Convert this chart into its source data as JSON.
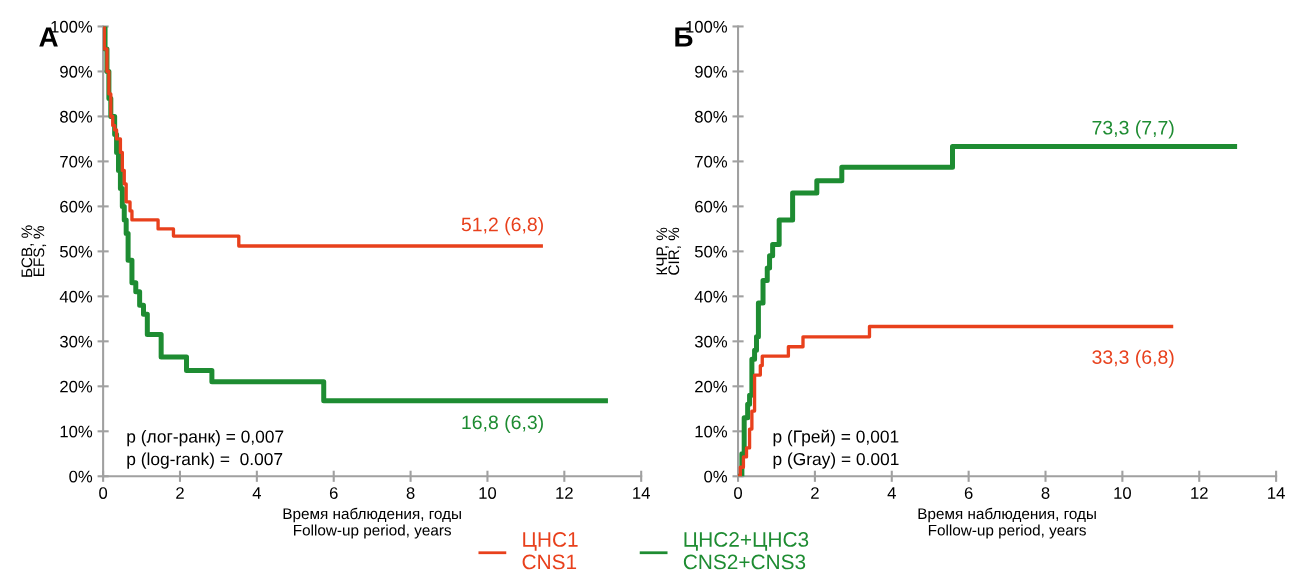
{
  "chart_data": [
    {
      "type": "step",
      "xlabel": "Время наблюдения, годы\nFollow-up period, years",
      "ylabel": "БСВ, %\nEFS, %",
      "xlim": [
        0,
        14
      ],
      "ylim": [
        0,
        100
      ],
      "xticks": [
        0,
        2,
        4,
        6,
        8,
        10,
        12,
        14
      ],
      "yticks": [
        {
          "value": 0,
          "label": "0%"
        },
        {
          "value": 10,
          "label": "10%"
        },
        {
          "value": 20,
          "label": "20%"
        },
        {
          "value": 30,
          "label": "30%"
        },
        {
          "value": 40,
          "label": "40%"
        },
        {
          "value": 50,
          "label": "50%"
        },
        {
          "value": 60,
          "label": "60%"
        },
        {
          "value": 70,
          "label": "70%"
        },
        {
          "value": 80,
          "label": "80%"
        },
        {
          "value": 90,
          "label": "90%"
        },
        {
          "value": 100,
          "label": "100%"
        }
      ],
      "grid": false,
      "legend": "bottom",
      "line_style": "solid",
      "marker": "none",
      "series": [
        {
          "name": "ЦНС1\nCNS1",
          "color": "#e8401c",
          "x": [
            0,
            0.03,
            0.1,
            0.15,
            0.2,
            0.25,
            0.3,
            0.35,
            0.45,
            0.5,
            0.55,
            0.6,
            0.7,
            0.75,
            1.43,
            1.83,
            3.53,
            11.4
          ],
          "values": [
            100,
            95,
            90,
            85,
            80,
            78,
            77,
            75,
            72,
            68,
            65,
            61,
            59,
            57,
            55,
            53.4,
            51.2,
            51.2
          ]
        },
        {
          "name": "ЦНС2+ЦНС3\nCNS2+CNS3",
          "color": "#1e8c32",
          "x": [
            0,
            0.05,
            0.1,
            0.15,
            0.2,
            0.3,
            0.35,
            0.4,
            0.45,
            0.5,
            0.55,
            0.6,
            0.65,
            0.75,
            0.85,
            0.95,
            1.05,
            1.15,
            1.51,
            2.17,
            2.83,
            5.74,
            13.07
          ],
          "values": [
            100,
            95,
            90,
            84,
            80,
            76,
            72,
            68,
            64,
            60,
            57,
            54,
            48,
            43,
            41,
            38,
            36,
            31.5,
            26.5,
            23.5,
            21,
            16.8,
            16.8
          ]
        }
      ],
      "annotations": [
        "А",
        "51,2 (6,8)",
        "16,8 (6,3)",
        "p (лог-ранк) = 0,007",
        "p (log-rank) =  0.007"
      ]
    },
    {
      "type": "step",
      "xlabel": "Время наблюдения, годы\nFollow-up period, years",
      "ylabel": "КЧР, %\nCIR, %",
      "xlim": [
        0,
        14
      ],
      "ylim": [
        0,
        100
      ],
      "xticks": [
        0,
        2,
        4,
        6,
        8,
        10,
        12,
        14
      ],
      "yticks": [
        {
          "value": 0,
          "label": "0%"
        },
        {
          "value": 10,
          "label": "10%"
        },
        {
          "value": 20,
          "label": "20%"
        },
        {
          "value": 30,
          "label": "30%"
        },
        {
          "value": 40,
          "label": "40%"
        },
        {
          "value": 50,
          "label": "50%"
        },
        {
          "value": 60,
          "label": "60%"
        },
        {
          "value": 70,
          "label": "70%"
        },
        {
          "value": 80,
          "label": "80%"
        },
        {
          "value": 90,
          "label": "90%"
        },
        {
          "value": 100,
          "label": "100%"
        }
      ],
      "grid": false,
      "line_style": "solid",
      "marker": "none",
      "series": [
        {
          "color": "#e8401c",
          "x": [
            0,
            0.06,
            0.14,
            0.22,
            0.3,
            0.36,
            0.43,
            0.58,
            0.63,
            1.31,
            1.69,
            3.42,
            11.28
          ],
          "values": [
            0,
            2,
            4.3,
            6.3,
            10.5,
            14.5,
            22.5,
            24.6,
            26.7,
            28.8,
            31,
            33.3,
            33.3
          ]
        },
        {
          "color": "#1e8c32",
          "x": [
            0,
            0.1,
            0.16,
            0.25,
            0.3,
            0.36,
            0.43,
            0.48,
            0.53,
            0.65,
            0.76,
            0.82,
            0.9,
            1.07,
            1.42,
            2.05,
            2.7,
            5.58,
            12.92
          ],
          "values": [
            0,
            5,
            13,
            16,
            18,
            26,
            28,
            31,
            38.5,
            43.5,
            46.3,
            49,
            51.5,
            57,
            63,
            65.7,
            68.7,
            73.3,
            73.3
          ]
        }
      ],
      "annotations": [
        "Б",
        "73,3 (7,7)",
        "33,3 (6,8)",
        "p (Грей) = 0,001",
        "p (Gray) = 0.001"
      ]
    }
  ]
}
